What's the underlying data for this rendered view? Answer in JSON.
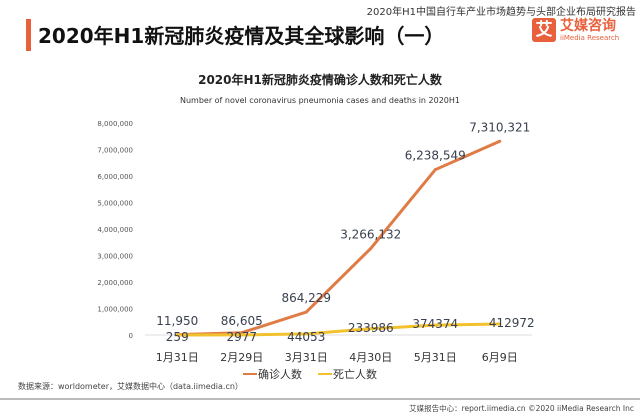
{
  "header": {
    "report_name": "2020年H1中国自行车产业市场趋势与头部企业布局研究报告",
    "title": "2020年H1新冠肺炎疫情及其全球影响（一）",
    "logo_cn": "艾媒咨询",
    "logo_en": "iiMedia Research",
    "logo_mark": "艾"
  },
  "footer": {
    "source": "数据来源：worldometer，艾媒数据中心（data.iimedia.cn）",
    "credit": "艾媒报告中心：report.iimedia.cn  ©2020  iiMedia Research Inc"
  },
  "chart_data": {
    "type": "line",
    "title": "2020年H1新冠肺炎疫情确诊人数和死亡人数",
    "subtitle": "Number of novel coronavirus pneumonia cases and deaths in 2020H1",
    "categories": [
      "1月31日",
      "2月29日",
      "3月31日",
      "4月30日",
      "5月31日",
      "6月9日"
    ],
    "ylim": [
      0,
      8000000
    ],
    "yticks": [
      "0",
      "1,000,000",
      "2,000,000",
      "3,000,000",
      "4,000,000",
      "5,000,000",
      "6,000,000",
      "7,000,000",
      "8,000,000"
    ],
    "grid": false,
    "legend": "bottom",
    "series": [
      {
        "name": "确诊人数",
        "color": "#e07b45",
        "values": [
          11950,
          86605,
          864229,
          3266132,
          6238549,
          7310321
        ],
        "labels": [
          "11,950",
          "86,605",
          "864,229",
          "3,266,132",
          "6,238,549",
          "7,310,321"
        ]
      },
      {
        "name": "死亡人数",
        "color": "#f2c12e",
        "values": [
          259,
          2977,
          44053,
          233986,
          374374,
          412972
        ],
        "labels": [
          "259",
          "2977",
          "44053",
          "233986",
          "374374",
          "412972"
        ]
      }
    ]
  }
}
